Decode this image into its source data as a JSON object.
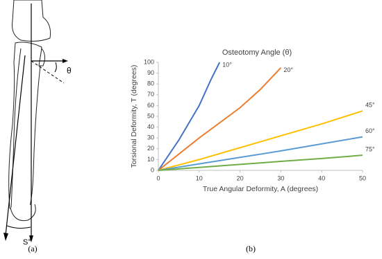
{
  "figure": {
    "panel_a": {
      "angle_label": "θ",
      "arc_label": "S°",
      "caption": "(a)"
    },
    "panel_b_caption": "(b)"
  },
  "chart_data": {
    "type": "line",
    "title": "Osteotomy Angle (θ)",
    "x_label": "True Angular Deformity, A (degrees)",
    "y_label": "Torsional Deformity, T (degrees)",
    "xlim": [
      0,
      50
    ],
    "ylim": [
      0,
      100
    ],
    "xticks": [
      0,
      10,
      20,
      30,
      40,
      50
    ],
    "yticks": [
      0,
      10,
      20,
      30,
      40,
      50,
      60,
      70,
      80,
      90,
      100
    ],
    "grid": false,
    "series": [
      {
        "name": "10°",
        "color": "#4472c4",
        "x": [
          0,
          5,
          10,
          13,
          15
        ],
        "values": [
          0,
          28,
          60,
          85,
          100
        ]
      },
      {
        "name": "20°",
        "color": "#ed7d31",
        "x": [
          0,
          10,
          20,
          25,
          30
        ],
        "values": [
          0,
          30,
          58,
          75,
          95
        ]
      },
      {
        "name": "45°",
        "color": "#ffc000",
        "x": [
          0,
          10,
          20,
          30,
          40,
          50
        ],
        "values": [
          0,
          10,
          21,
          32,
          43,
          55
        ]
      },
      {
        "name": "60°",
        "color": "#5b9bd5",
        "x": [
          0,
          10,
          20,
          30,
          40,
          50
        ],
        "values": [
          0,
          6,
          12,
          18,
          24.5,
          31
        ]
      },
      {
        "name": "75°",
        "color": "#70ad47",
        "x": [
          0,
          10,
          20,
          30,
          40,
          50
        ],
        "values": [
          0,
          2.7,
          5.5,
          8.3,
          11,
          14
        ]
      }
    ]
  }
}
